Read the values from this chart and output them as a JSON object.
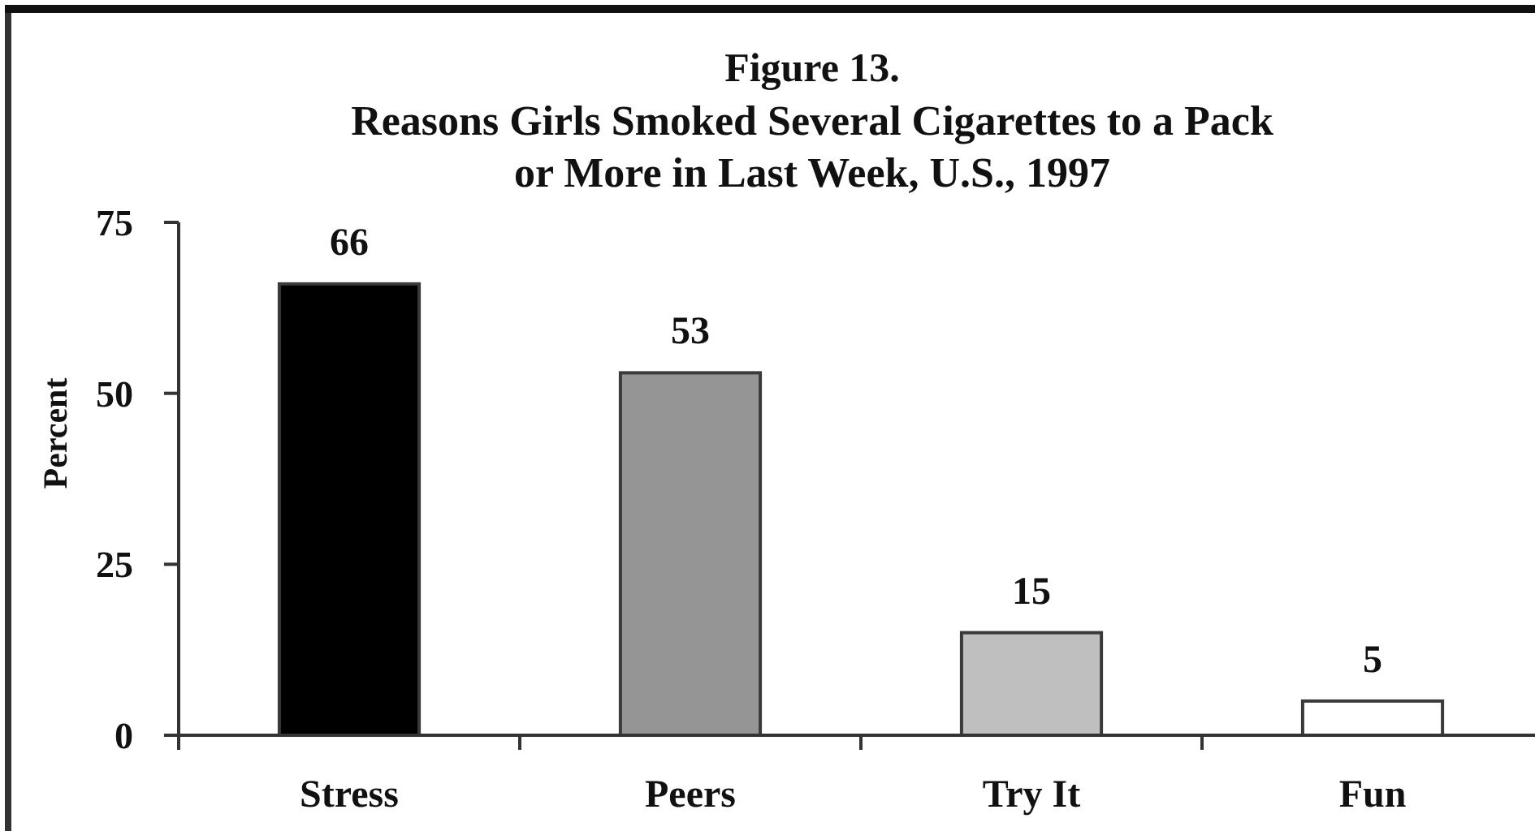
{
  "chart_data": {
    "type": "bar",
    "title": "Figure 13.",
    "subtitle": "Reasons Girls Smoked Several Cigarettes to a Pack or More in Last Week, U.S., 1997",
    "ylabel": "Percent",
    "categories": [
      "Stress",
      "Peers",
      "Try It",
      "Fun"
    ],
    "values": [
      66,
      53,
      15,
      5
    ],
    "colors": [
      "#000000",
      "#959595",
      "#bfbfbf",
      "#ffffff"
    ],
    "ylim": [
      0,
      75
    ],
    "yticks": [
      0,
      25,
      50,
      75
    ],
    "data_labels": true
  }
}
